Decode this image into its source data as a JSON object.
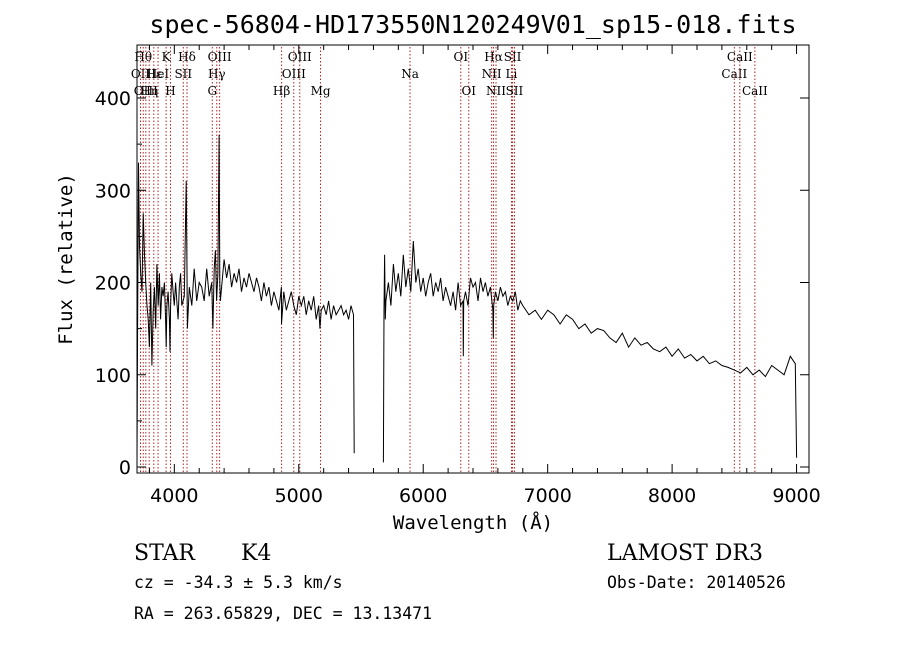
{
  "chart_data": {
    "type": "line",
    "title": "spec-56804-HD173550N120249V01_sp15-018.fits",
    "xlabel": "Wavelength (Å)",
    "ylabel": "Flux (relative)",
    "xlim": [
      3700,
      9100
    ],
    "ylim": [
      0,
      460
    ],
    "xticks": [
      4000,
      5000,
      6000,
      7000,
      8000,
      9000
    ],
    "xtick_labels": [
      "4000",
      "5000",
      "6000",
      "7000",
      "8000",
      "9000"
    ],
    "yticks": [
      0,
      100,
      200,
      300,
      400
    ],
    "ytick_labels": [
      "0",
      "100",
      "200",
      "300",
      "400"
    ],
    "gap": [
      5450,
      5680
    ],
    "series": [
      {
        "name": "spectrum",
        "x": [
          3700,
          3705,
          3712,
          3720,
          3730,
          3740,
          3750,
          3760,
          3770,
          3780,
          3790,
          3800,
          3810,
          3820,
          3830,
          3840,
          3850,
          3860,
          3870,
          3880,
          3890,
          3900,
          3910,
          3920,
          3930,
          3935,
          3940,
          3950,
          3960,
          3965,
          3970,
          3980,
          3990,
          4000,
          4010,
          4020,
          4030,
          4040,
          4050,
          4060,
          4080,
          4095,
          4100,
          4105,
          4120,
          4140,
          4160,
          4180,
          4200,
          4220,
          4240,
          4260,
          4280,
          4300,
          4310,
          4320,
          4330,
          4340,
          4350,
          4360,
          4365,
          4370,
          4380,
          4400,
          4420,
          4440,
          4460,
          4480,
          4500,
          4520,
          4540,
          4560,
          4580,
          4600,
          4620,
          4640,
          4660,
          4680,
          4700,
          4720,
          4740,
          4760,
          4780,
          4800,
          4820,
          4840,
          4860,
          4861,
          4880,
          4900,
          4920,
          4940,
          4960,
          4980,
          5000,
          5020,
          5040,
          5060,
          5080,
          5100,
          5120,
          5140,
          5160,
          5170,
          5175,
          5180,
          5200,
          5220,
          5240,
          5260,
          5280,
          5300,
          5320,
          5340,
          5360,
          5380,
          5400,
          5420,
          5440,
          5445
        ],
        "y": [
          5,
          150,
          330,
          240,
          210,
          190,
          275,
          230,
          200,
          175,
          160,
          130,
          200,
          110,
          170,
          195,
          150,
          220,
          175,
          210,
          160,
          195,
          185,
          200,
          160,
          130,
          175,
          190,
          160,
          125,
          175,
          210,
          190,
          175,
          200,
          180,
          160,
          195,
          210,
          175,
          185,
          310,
          240,
          150,
          195,
          175,
          215,
          180,
          200,
          195,
          180,
          215,
          185,
          200,
          150,
          215,
          235,
          180,
          210,
          360,
          200,
          180,
          195,
          225,
          205,
          220,
          195,
          210,
          200,
          215,
          190,
          205,
          195,
          210,
          200,
          190,
          205,
          195,
          180,
          200,
          185,
          195,
          175,
          190,
          180,
          170,
          195,
          155,
          190,
          170,
          180,
          190,
          175,
          165,
          185,
          175,
          185,
          165,
          180,
          170,
          185,
          160,
          175,
          150,
          160,
          170,
          175,
          165,
          180,
          160,
          175,
          165,
          170,
          175,
          165,
          170,
          160,
          175,
          165,
          15
        ]
      },
      {
        "name": "spectrum-red",
        "x": [
          5680,
          5685,
          5690,
          5695,
          5700,
          5720,
          5740,
          5760,
          5780,
          5800,
          5820,
          5840,
          5860,
          5880,
          5900,
          5920,
          5940,
          5960,
          5980,
          6000,
          6020,
          6040,
          6060,
          6080,
          6100,
          6120,
          6140,
          6160,
          6180,
          6200,
          6220,
          6240,
          6260,
          6280,
          6300,
          6320,
          6322,
          6325,
          6340,
          6360,
          6380,
          6400,
          6420,
          6440,
          6460,
          6480,
          6500,
          6520,
          6540,
          6560,
          6563,
          6566,
          6580,
          6600,
          6620,
          6640,
          6660,
          6680,
          6700,
          6720,
          6740,
          6760,
          6780,
          6800,
          6850,
          6900,
          6950,
          7000,
          7050,
          7100,
          7150,
          7200,
          7250,
          7300,
          7350,
          7400,
          7450,
          7500,
          7550,
          7600,
          7650,
          7700,
          7750,
          7800,
          7850,
          7900,
          7950,
          8000,
          8050,
          8100,
          8150,
          8200,
          8250,
          8300,
          8350,
          8400,
          8450,
          8500,
          8550,
          8600,
          8650,
          8700,
          8750,
          8800,
          8850,
          8900,
          8950,
          8990,
          9000
        ],
        "y": [
          5,
          170,
          230,
          160,
          180,
          200,
          175,
          220,
          190,
          210,
          185,
          230,
          195,
          215,
          190,
          245,
          200,
          215,
          190,
          205,
          185,
          200,
          210,
          185,
          200,
          190,
          205,
          180,
          195,
          185,
          175,
          190,
          170,
          200,
          175,
          180,
          120,
          180,
          190,
          175,
          205,
          195,
          200,
          180,
          205,
          190,
          200,
          185,
          195,
          170,
          140,
          175,
          190,
          180,
          195,
          185,
          190,
          175,
          185,
          180,
          190,
          170,
          180,
          175,
          165,
          170,
          160,
          170,
          165,
          155,
          165,
          160,
          150,
          155,
          145,
          150,
          148,
          140,
          135,
          145,
          130,
          140,
          132,
          135,
          128,
          125,
          130,
          120,
          128,
          118,
          122,
          115,
          120,
          112,
          115,
          110,
          108,
          105,
          102,
          108,
          100,
          105,
          98,
          110,
          105,
          100,
          120,
          112,
          10
        ]
      }
    ],
    "lines": [
      {
        "x": 3728,
        "name": "OII",
        "row": 1
      },
      {
        "x": 3750,
        "name": "Hθ",
        "row": 0
      },
      {
        "x": 3771,
        "name": "OIII",
        "row": 2
      },
      {
        "x": 3798,
        "name": "Hη",
        "row": 2
      },
      {
        "x": 3835,
        "name": "Hε",
        "row": 1
      },
      {
        "x": 3869,
        "name": "HeI",
        "row": 1
      },
      {
        "x": 3934,
        "name": "K",
        "row": 0
      },
      {
        "x": 3969,
        "name": "H",
        "row": 2
      },
      {
        "x": 4072,
        "name": "SII",
        "row": 1
      },
      {
        "x": 4102,
        "name": "Hδ",
        "row": 0
      },
      {
        "x": 4305,
        "name": "G",
        "row": 2
      },
      {
        "x": 4341,
        "name": "Hγ",
        "row": 1
      },
      {
        "x": 4364,
        "name": "OIII",
        "row": 0
      },
      {
        "x": 4862,
        "name": "Hβ",
        "row": 2
      },
      {
        "x": 4960,
        "name": "OIII",
        "row": 1
      },
      {
        "x": 5008,
        "name": "OIII",
        "row": 0
      },
      {
        "x": 5175,
        "name": "Mg",
        "row": 2
      },
      {
        "x": 5894,
        "name": "Na",
        "row": 1
      },
      {
        "x": 6302,
        "name": "OI",
        "row": 0
      },
      {
        "x": 6366,
        "name": "OI",
        "row": 2
      },
      {
        "x": 6550,
        "name": "NII",
        "row": 1
      },
      {
        "x": 6565,
        "name": "Hα",
        "row": 0
      },
      {
        "x": 6585,
        "name": "NII",
        "row": 2
      },
      {
        "x": 6709,
        "name": "Li",
        "row": 1
      },
      {
        "x": 6718,
        "name": "SII",
        "row": 0
      },
      {
        "x": 6733,
        "name": "SII",
        "row": 2
      },
      {
        "x": 8500,
        "name": "CaII",
        "row": 1
      },
      {
        "x": 8544,
        "name": "CaII",
        "row": 0
      },
      {
        "x": 8665,
        "name": "CaII",
        "row": 2
      }
    ]
  },
  "info": {
    "object_class": "STAR",
    "subclass": "K4",
    "survey": "LAMOST DR3",
    "redshift": "cz = -34.3 ± 5.3 km/s",
    "obs_date": "Obs-Date: 20140526",
    "coords": "RA = 263.65829, DEC =  13.13471"
  }
}
